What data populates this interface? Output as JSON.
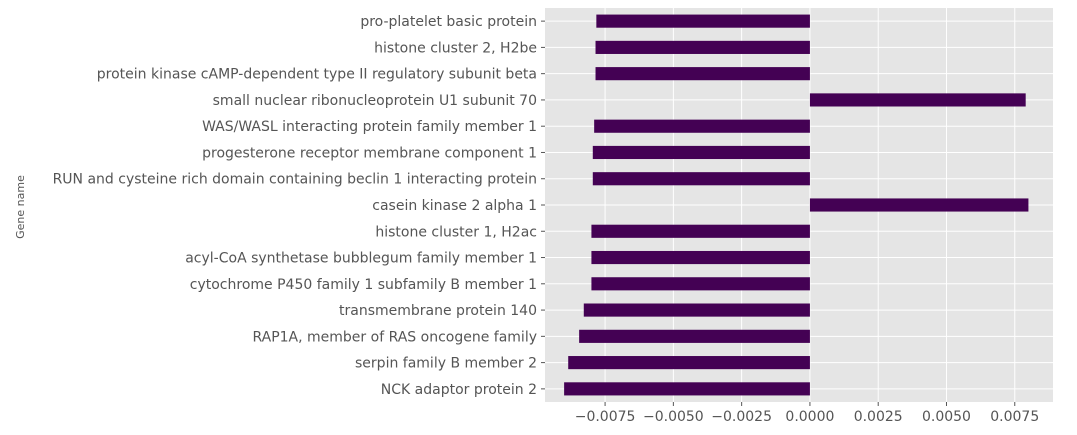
{
  "chart_data": {
    "type": "bar",
    "orientation": "horizontal",
    "ylabel": "Gene name",
    "xlim": [
      -0.0097,
      0.0089
    ],
    "grid": true,
    "bar_color": "#440154",
    "background_color": "#e5e5e5",
    "categories": [
      "pro-platelet basic protein",
      "histone cluster 2, H2be",
      "protein kinase cAMP-dependent type II regulatory subunit beta",
      "small nuclear ribonucleoprotein U1 subunit 70",
      "WAS/WASL interacting protein family member 1",
      "progesterone receptor membrane component 1",
      "RUN and cysteine rich domain containing beclin 1 interacting protein",
      "casein kinase 2 alpha 1",
      "histone cluster 1, H2ac",
      "acyl-CoA synthetase bubblegum family member 1",
      "cytochrome P450 family 1 subfamily B member 1",
      "transmembrane protein 140",
      "RAP1A, member of RAS oncogene family",
      "serpin family B member 2",
      "NCK adaptor protein 2"
    ],
    "values": [
      -0.00782,
      -0.00785,
      -0.00785,
      0.0079,
      -0.0079,
      -0.00795,
      -0.00795,
      0.008,
      -0.008,
      -0.008,
      -0.008,
      -0.00828,
      -0.00845,
      -0.00885,
      -0.009
    ],
    "x_ticks": [
      -0.0075,
      -0.005,
      -0.0025,
      0.0,
      0.0025,
      0.005,
      0.0075
    ],
    "x_tick_labels": [
      "−0.0075",
      "−0.0050",
      "−0.0025",
      "0.0000",
      "0.0025",
      "0.0050",
      "0.0075"
    ]
  }
}
